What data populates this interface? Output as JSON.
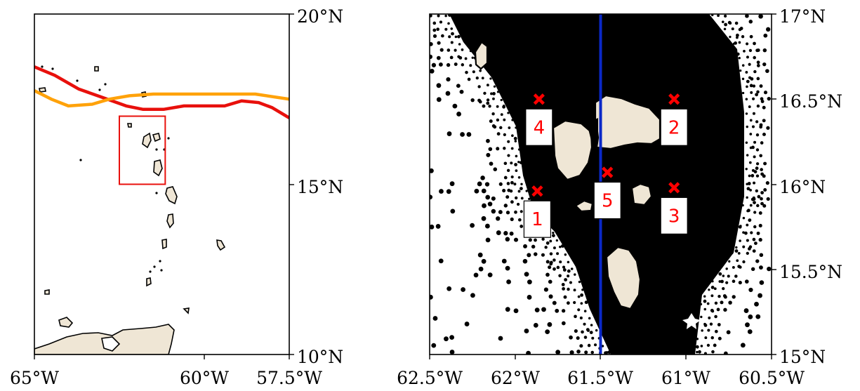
{
  "colors": {
    "land": "#efe6d5",
    "coastline": "#000000",
    "track_red": "#e8100c",
    "track_orange": "#ffa20a",
    "inset_box": "#e8100c",
    "transect": "#0a28c8",
    "site_marker": "#ff0000",
    "mesh_node": "#000000"
  },
  "overview_map": {
    "lon_labels": [
      "65°W",
      "60°W",
      "57.5°W"
    ],
    "lat_labels": [
      "20°N",
      "15°N",
      "10°N"
    ],
    "tracks": [
      {
        "color": "red",
        "points": [
          [
            -65.0,
            18.45
          ],
          [
            -64.4,
            18.2
          ],
          [
            -63.7,
            17.8
          ],
          [
            -63.0,
            17.55
          ],
          [
            -62.3,
            17.3
          ],
          [
            -61.8,
            17.2
          ],
          [
            -61.2,
            17.2
          ],
          [
            -60.6,
            17.3
          ],
          [
            -60.0,
            17.3
          ],
          [
            -59.4,
            17.3
          ],
          [
            -58.9,
            17.45
          ],
          [
            -58.4,
            17.4
          ],
          [
            -58.0,
            17.25
          ],
          [
            -57.5,
            16.95
          ]
        ]
      },
      {
        "color": "orange",
        "points": [
          [
            -65.0,
            17.75
          ],
          [
            -64.5,
            17.5
          ],
          [
            -64.0,
            17.3
          ],
          [
            -63.3,
            17.35
          ],
          [
            -62.8,
            17.5
          ],
          [
            -62.2,
            17.6
          ],
          [
            -61.5,
            17.65
          ],
          [
            -60.5,
            17.65
          ],
          [
            -59.5,
            17.65
          ],
          [
            -58.5,
            17.65
          ],
          [
            -57.5,
            17.5
          ]
        ]
      }
    ],
    "inset_box": {
      "lon": [
        -62.5,
        -61.15
      ],
      "lat": [
        15.0,
        17.0
      ]
    }
  },
  "detail_map": {
    "lon_labels": [
      "62.5°W",
      "62°W",
      "61.5°W",
      "61°W",
      "60.5°W"
    ],
    "lat_labels": [
      "17°N",
      "16.5°N",
      "16°N",
      "15.5°N",
      "15°N"
    ],
    "transect_lon": -61.5,
    "sites": [
      {
        "id": "1",
        "lon": -61.87,
        "lat": 15.96
      },
      {
        "id": "2",
        "lon": -61.07,
        "lat": 16.5
      },
      {
        "id": "3",
        "lon": -61.07,
        "lat": 15.98
      },
      {
        "id": "4",
        "lon": -61.86,
        "lat": 16.5
      },
      {
        "id": "5",
        "lon": -61.46,
        "lat": 16.07
      }
    ]
  }
}
